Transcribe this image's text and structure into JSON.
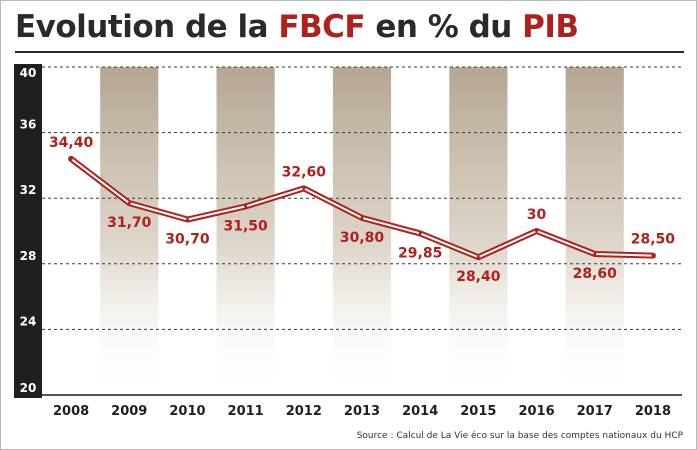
{
  "header": {
    "title_part1": "Evolution de la ",
    "title_accent1": "FBCF",
    "title_part2": " en % du ",
    "title_accent2": "PIB"
  },
  "source": "Source : Calcul de La Vie éco sur la base des comptes nationaux du HCP",
  "colors": {
    "line": "#b0211c",
    "accent_text": "#b0211c",
    "axis_bar": "#1f1f1f",
    "shaded_column": "#b9aa96",
    "title_text": "#2a2a2a"
  },
  "chart_data": {
    "type": "line",
    "title": "Evolution de la FBCF en % du PIB",
    "xlabel": "",
    "ylabel": "",
    "categories": [
      "2008",
      "2009",
      "2010",
      "2011",
      "2012",
      "2013",
      "2014",
      "2015",
      "2016",
      "2017",
      "2018"
    ],
    "series": [
      {
        "values": [
          34.4,
          31.7,
          30.7,
          31.5,
          32.6,
          30.8,
          29.85,
          28.4,
          30,
          28.6,
          28.5
        ]
      }
    ],
    "data_labels": [
      "34,40",
      "31,70",
      "30,70",
      "31,50",
      "32,60",
      "30,80",
      "29,85",
      "28,40",
      "30",
      "28,60",
      "28,50"
    ],
    "label_position": [
      "above",
      "below",
      "below",
      "below",
      "above",
      "below",
      "below",
      "below",
      "above",
      "below",
      "above"
    ],
    "ylim": [
      20,
      40
    ],
    "yticks": [
      20,
      24,
      28,
      32,
      36,
      40
    ],
    "grid": "horizontal-dashed",
    "shaded_columns": [
      "2009",
      "2011",
      "2013",
      "2015",
      "2017"
    ]
  }
}
